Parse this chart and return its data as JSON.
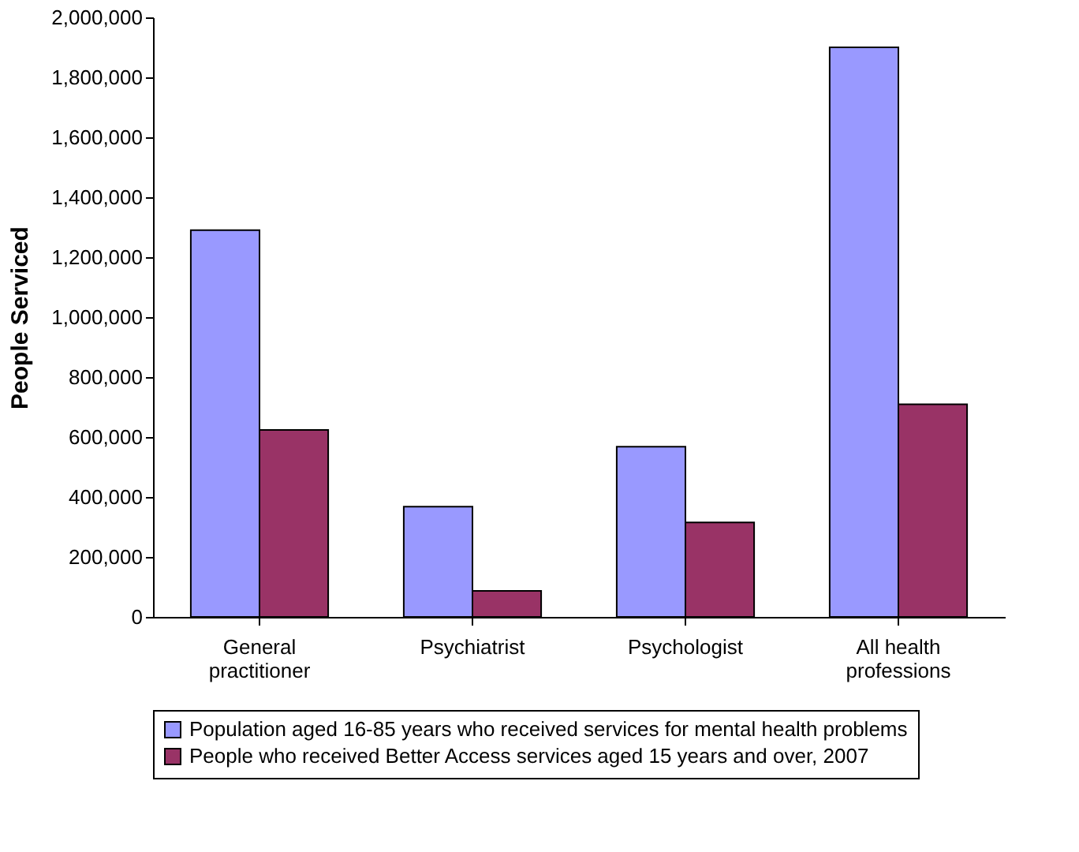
{
  "chart_data": {
    "type": "bar",
    "ylabel": "People Serviced",
    "categories": [
      "General practitioner",
      "Psychiatrist",
      "Psychologist",
      "All health professions"
    ],
    "series": [
      {
        "name": "Population aged 16-85 years who received services for mental health problems",
        "color": "#9999ff",
        "values": [
          1290000,
          368000,
          568000,
          1900000
        ]
      },
      {
        "name": "People who received Better Access services aged 15 years and over, 2007",
        "color": "#993366",
        "values": [
          624000,
          87000,
          315000,
          709000
        ]
      }
    ],
    "ylim": [
      0,
      2000000
    ],
    "yticks": [
      0,
      {
        "value": 200000,
        "label": "200,000"
      },
      {
        "value": 400000,
        "label": "400,000"
      },
      {
        "value": 600000,
        "label": "600,000"
      },
      {
        "value": 800000,
        "label": "800,000"
      },
      {
        "value": 1000000,
        "label": "1,000,000"
      },
      {
        "value": 1200000,
        "label": "1,200,000"
      },
      {
        "value": 1400000,
        "label": "1,400,000"
      },
      {
        "value": 1600000,
        "label": "1,600,000"
      },
      {
        "value": 1800000,
        "label": "1,800,000"
      },
      {
        "value": 2000000,
        "label": "2,000,000"
      }
    ],
    "grid": false,
    "legend": "bottom"
  }
}
